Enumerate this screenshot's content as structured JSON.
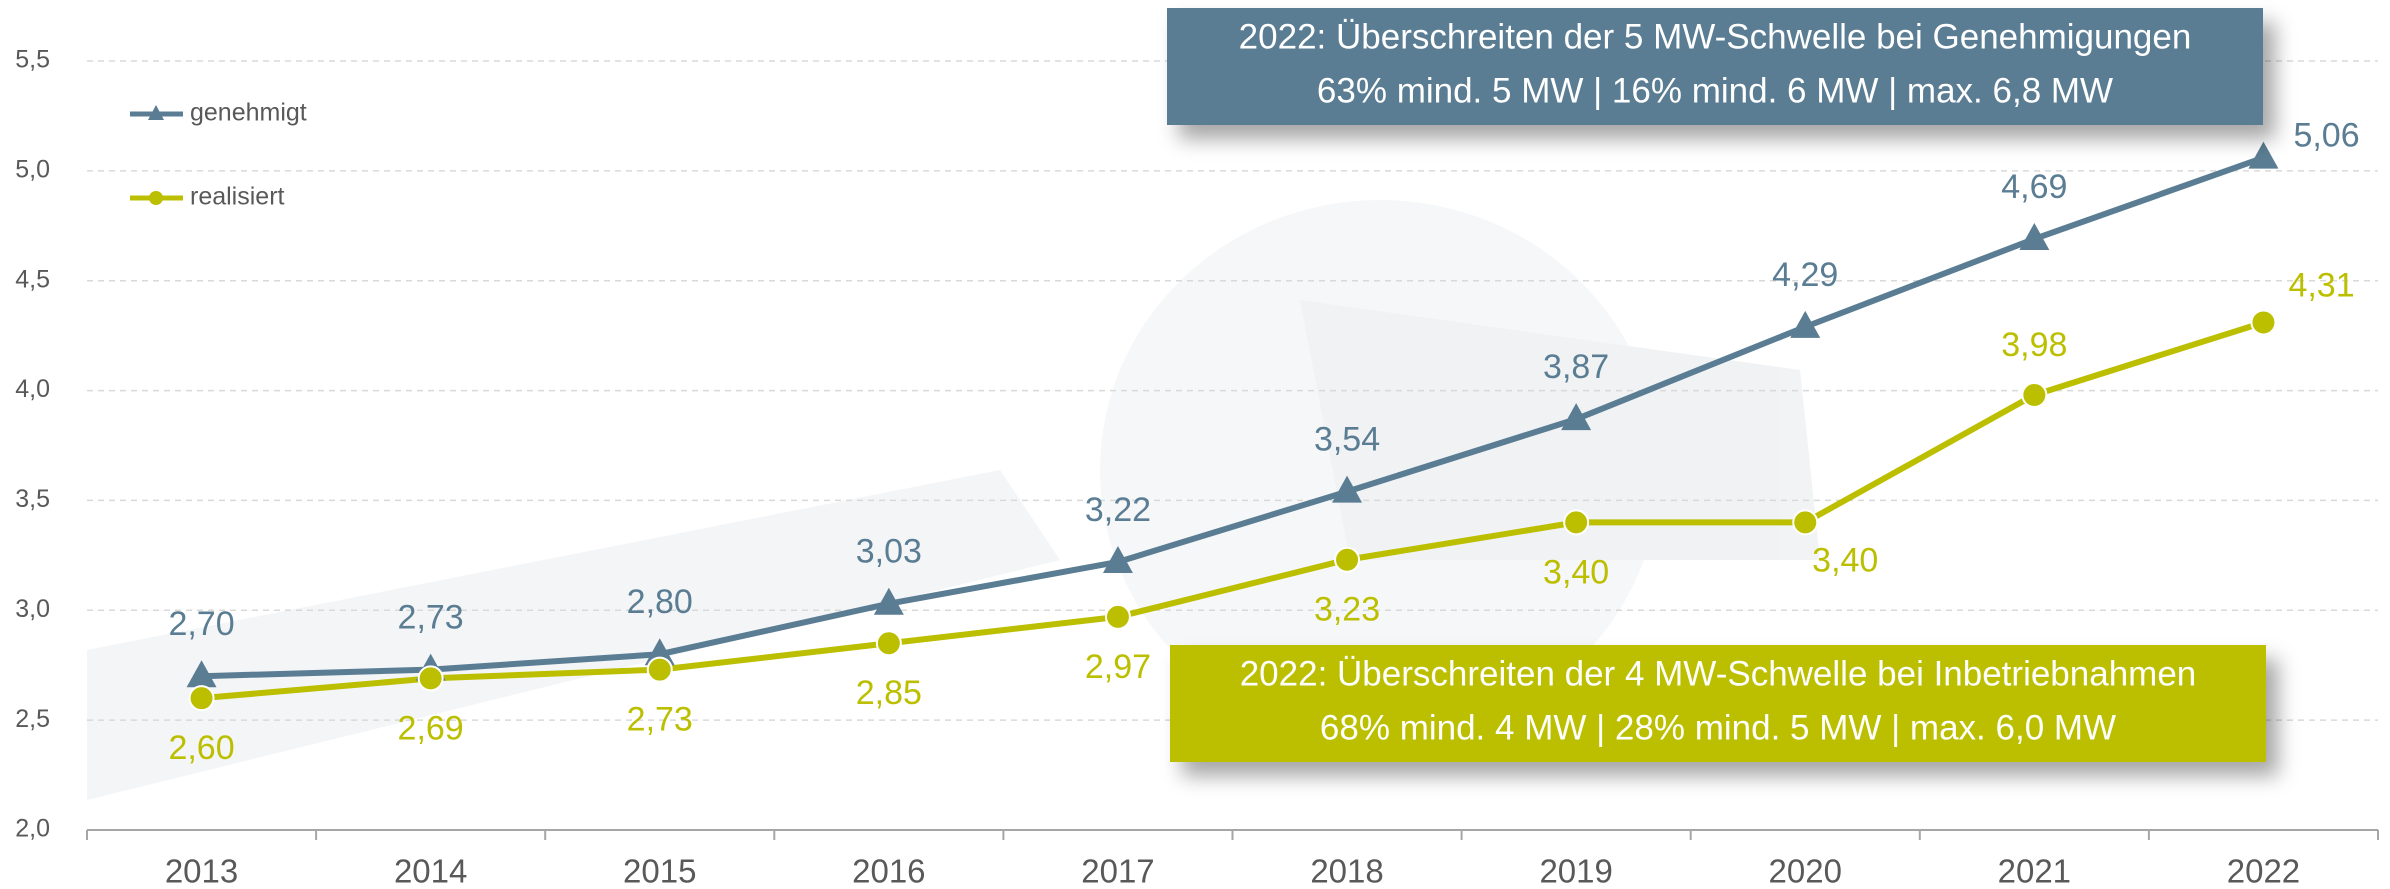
{
  "chart_data": {
    "type": "line",
    "categories": [
      "2013",
      "2014",
      "2015",
      "2016",
      "2017",
      "2018",
      "2019",
      "2020",
      "2021",
      "2022"
    ],
    "series": [
      {
        "name": "genehmigt",
        "color": "#5a7d93",
        "marker": "triangle",
        "values": [
          2.7,
          2.73,
          2.8,
          3.03,
          3.22,
          3.54,
          3.87,
          4.29,
          4.69,
          5.06
        ],
        "value_labels": [
          "2,70",
          "2,73",
          "2,80",
          "3,03",
          "3,22",
          "3,54",
          "3,87",
          "4,29",
          "4,69",
          "5,06"
        ]
      },
      {
        "name": "realisiert",
        "color": "#bcbf00",
        "marker": "circle",
        "values": [
          2.6,
          2.69,
          2.73,
          2.85,
          2.97,
          3.23,
          3.4,
          3.4,
          3.98,
          4.31
        ],
        "value_labels": [
          "2,60",
          "2,69",
          "2,73",
          "2,85",
          "2,97",
          "3,23",
          "3,40",
          "3,40",
          "3,98",
          "4,31"
        ]
      }
    ],
    "ylim": [
      2.0,
      5.5
    ],
    "yticks": [
      {
        "value": 2.0,
        "label": "2,0"
      },
      {
        "value": 2.5,
        "label": "2,5"
      },
      {
        "value": 3.0,
        "label": "3,0"
      },
      {
        "value": 3.5,
        "label": "3,5"
      },
      {
        "value": 4.0,
        "label": "4,0"
      },
      {
        "value": 4.5,
        "label": "4,5"
      },
      {
        "value": 5.0,
        "label": "5,0"
      },
      {
        "value": 5.5,
        "label": "5,5"
      }
    ],
    "grid": true,
    "legend": "upper left",
    "annotations": [
      {
        "color": "#5a7d93",
        "lines": [
          "2022: Überschreiten der 5 MW-Schwelle bei Genehmigungen",
          "63% mind. 5 MW | 16% mind. 6 MW | max. 6,8 MW"
        ]
      },
      {
        "color": "#bcbf00",
        "lines": [
          "2022: Überschreiten der 4 MW-Schwelle bei Inbetriebnahmen",
          "68% mind. 4 MW | 28% mind. 5 MW | max. 6,0 MW"
        ]
      }
    ]
  }
}
